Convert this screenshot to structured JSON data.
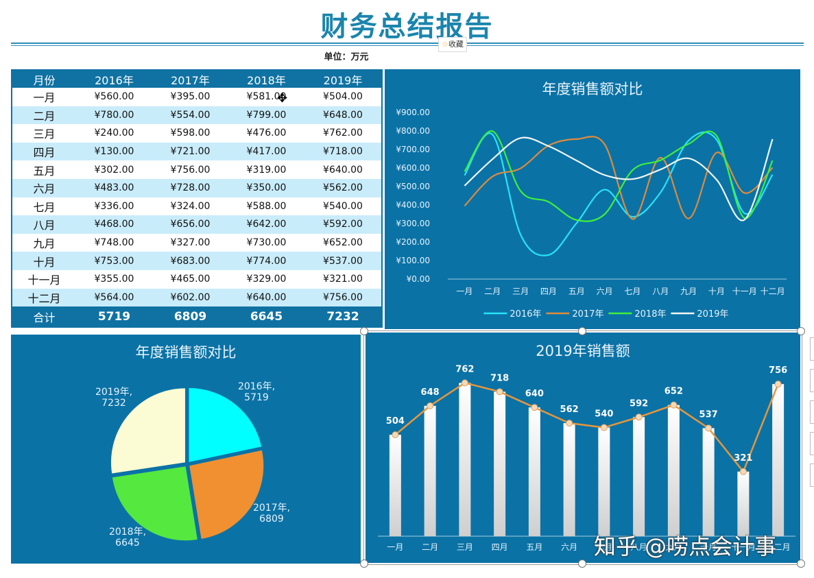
{
  "header": {
    "title": "财务总结报告",
    "unit": "单位：万元",
    "fav_label": "收藏"
  },
  "table": {
    "headers": [
      "月份",
      "2016年",
      "2017年",
      "2018年",
      "2019年"
    ],
    "rows": [
      [
        "一月",
        "¥560.00",
        "¥395.00",
        "¥581.00",
        "¥504.00"
      ],
      [
        "二月",
        "¥780.00",
        "¥554.00",
        "¥799.00",
        "¥648.00"
      ],
      [
        "三月",
        "¥240.00",
        "¥598.00",
        "¥476.00",
        "¥762.00"
      ],
      [
        "四月",
        "¥130.00",
        "¥721.00",
        "¥417.00",
        "¥718.00"
      ],
      [
        "五月",
        "¥302.00",
        "¥756.00",
        "¥319.00",
        "¥640.00"
      ],
      [
        "六月",
        "¥483.00",
        "¥728.00",
        "¥350.00",
        "¥562.00"
      ],
      [
        "七月",
        "¥336.00",
        "¥324.00",
        "¥588.00",
        "¥540.00"
      ],
      [
        "八月",
        "¥468.00",
        "¥656.00",
        "¥642.00",
        "¥592.00"
      ],
      [
        "九月",
        "¥748.00",
        "¥327.00",
        "¥730.00",
        "¥652.00"
      ],
      [
        "十月",
        "¥753.00",
        "¥683.00",
        "¥774.00",
        "¥537.00"
      ],
      [
        "十一月",
        "¥355.00",
        "¥465.00",
        "¥329.00",
        "¥321.00"
      ],
      [
        "十二月",
        "¥564.00",
        "¥602.00",
        "¥640.00",
        "¥756.00"
      ]
    ],
    "total": [
      "合计",
      "5719",
      "6809",
      "6645",
      "7232"
    ]
  },
  "watermark": "知乎 @唠点会计事",
  "colors": {
    "panel": "#0b72a6",
    "s2016": "#27e4f7",
    "s2017": "#e08b3a",
    "s2018": "#3ef03a",
    "s2019": "#f2f6f2",
    "pie2016": "#00ffff",
    "pie2017": "#f09030",
    "pie2018": "#55e83e",
    "pie2019": "#fbfbd4",
    "line2019": "#e8963a"
  },
  "chart_data": [
    {
      "type": "line",
      "title": "年度销售额对比",
      "categories": [
        "一月",
        "二月",
        "三月",
        "四月",
        "五月",
        "六月",
        "七月",
        "八月",
        "九月",
        "十月",
        "十一月",
        "十二月"
      ],
      "series": [
        {
          "name": "2016年",
          "values": [
            560,
            780,
            240,
            130,
            302,
            483,
            336,
            468,
            748,
            753,
            355,
            564
          ]
        },
        {
          "name": "2017年",
          "values": [
            395,
            554,
            598,
            721,
            756,
            728,
            324,
            656,
            327,
            683,
            465,
            602
          ]
        },
        {
          "name": "2018年",
          "values": [
            581,
            799,
            476,
            417,
            319,
            350,
            588,
            642,
            730,
            774,
            329,
            640
          ]
        },
        {
          "name": "2019年",
          "values": [
            504,
            648,
            762,
            718,
            640,
            562,
            540,
            592,
            652,
            537,
            321,
            756
          ]
        }
      ],
      "yticks": [
        "¥0.00",
        "¥100.00",
        "¥200.00",
        "¥300.00",
        "¥400.00",
        "¥500.00",
        "¥600.00",
        "¥700.00",
        "¥800.00",
        "¥900.00"
      ],
      "ylim": [
        0,
        900
      ],
      "legend": "bottom"
    },
    {
      "type": "pie",
      "title": "年度销售额对比",
      "slices": [
        {
          "name": "2016年",
          "value": 5719
        },
        {
          "name": "2017年",
          "value": 6809
        },
        {
          "name": "2018年",
          "value": 6645
        },
        {
          "name": "2019年",
          "value": 7232
        }
      ]
    },
    {
      "type": "bar",
      "title": "2019年销售额",
      "categories": [
        "一月",
        "二月",
        "三月",
        "四月",
        "五月",
        "六月",
        "七月",
        "八月",
        "九月",
        "十月",
        "十一月",
        "十二月"
      ],
      "values": [
        504,
        648,
        762,
        718,
        640,
        562,
        540,
        592,
        652,
        537,
        321,
        756
      ],
      "overlay_line": true
    }
  ]
}
